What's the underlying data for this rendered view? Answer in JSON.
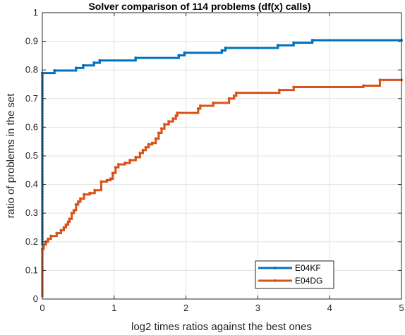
{
  "chart_data": {
    "type": "line",
    "title": "Solver comparison of 114 problems (df(x) calls)",
    "xlabel": "log2 times ratios against the best ones",
    "ylabel": "ratio of problems in the set",
    "xlim": [
      0,
      5
    ],
    "ylim": [
      0,
      1
    ],
    "xticks": [
      "0",
      "1",
      "2",
      "3",
      "4",
      "5"
    ],
    "yticks": [
      "0",
      "0.1",
      "0.2",
      "0.3",
      "0.4",
      "0.5",
      "0.6",
      "0.7",
      "0.8",
      "0.9",
      "1"
    ],
    "grid": true,
    "legend_position": "bottom-right",
    "step": true,
    "series": [
      {
        "name": "E04KF",
        "color": "#0072BD",
        "x": [
          0,
          0,
          0.17,
          0.47,
          0.57,
          0.72,
          0.8,
          1.3,
          1.9,
          1.98,
          2.5,
          2.55,
          3.28,
          3.5,
          3.76,
          5
        ],
        "y": [
          0.19,
          0.789,
          0.798,
          0.807,
          0.816,
          0.825,
          0.833,
          0.842,
          0.851,
          0.86,
          0.868,
          0.877,
          0.886,
          0.895,
          0.904,
          0.904
        ]
      },
      {
        "name": "E04DG",
        "color": "#D95319",
        "x": [
          0,
          0,
          0.02,
          0.05,
          0.08,
          0.12,
          0.2,
          0.26,
          0.3,
          0.33,
          0.36,
          0.38,
          0.41,
          0.44,
          0.47,
          0.5,
          0.53,
          0.58,
          0.66,
          0.73,
          0.82,
          0.9,
          0.95,
          0.98,
          1.02,
          1.06,
          1.15,
          1.22,
          1.3,
          1.36,
          1.4,
          1.44,
          1.48,
          1.53,
          1.58,
          1.62,
          1.66,
          1.7,
          1.76,
          1.82,
          1.86,
          1.88,
          2.17,
          2.2,
          2.38,
          2.6,
          2.67,
          2.7,
          3.3,
          3.5,
          4.47,
          4.7,
          5
        ],
        "y": [
          0.01,
          0.175,
          0.19,
          0.2,
          0.21,
          0.22,
          0.23,
          0.24,
          0.25,
          0.26,
          0.27,
          0.28,
          0.3,
          0.31,
          0.33,
          0.34,
          0.35,
          0.365,
          0.37,
          0.38,
          0.41,
          0.415,
          0.42,
          0.44,
          0.46,
          0.47,
          0.475,
          0.485,
          0.495,
          0.51,
          0.52,
          0.53,
          0.54,
          0.545,
          0.56,
          0.58,
          0.595,
          0.61,
          0.62,
          0.63,
          0.64,
          0.65,
          0.665,
          0.675,
          0.685,
          0.7,
          0.71,
          0.72,
          0.73,
          0.74,
          0.745,
          0.765,
          0.765
        ]
      }
    ]
  }
}
